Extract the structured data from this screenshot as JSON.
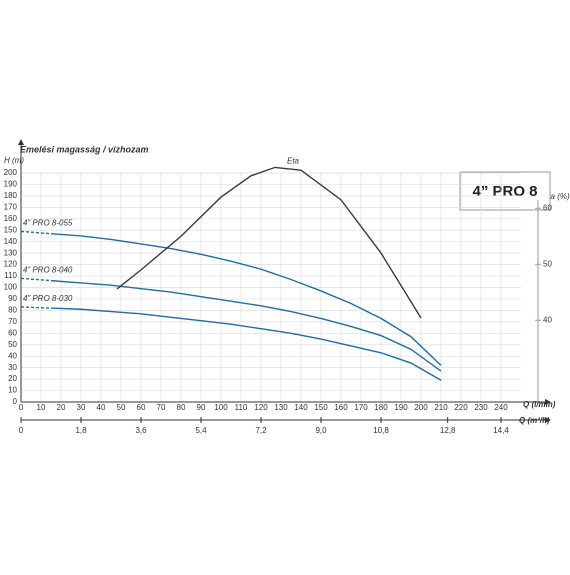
{
  "chart_data": {
    "type": "line",
    "title": "4” PRO 8",
    "subtitle": "Emelési magasság / vízhozam",
    "y_label": "H (m)",
    "y2_label": "Eta (%)",
    "x_label": "Q (l/min)",
    "x2_label": "Q (m³/h)",
    "x": [
      0,
      15,
      30,
      45,
      60,
      75,
      90,
      105,
      120,
      135,
      150,
      165,
      180,
      195,
      210
    ],
    "series": [
      {
        "name": "4” PRO 8-055",
        "color": "#1f6e9c",
        "values": [
          149,
          147,
          145,
          142,
          138,
          134,
          129,
          123,
          116,
          107,
          97,
          86,
          73,
          57,
          32
        ]
      },
      {
        "name": "4” PRO 8-040",
        "color": "#1f6e9c",
        "values": [
          108,
          106,
          104,
          102,
          99,
          96,
          92,
          88,
          84,
          79,
          73,
          66,
          58,
          46,
          27
        ]
      },
      {
        "name": "4” PRO 8-030",
        "color": "#1f6e9c",
        "values": [
          83,
          82,
          81,
          79,
          77,
          74,
          71,
          68,
          64,
          60,
          55,
          49,
          43,
          34,
          19
        ]
      },
      {
        "name": "Eta",
        "color": "#3a3a3a",
        "axis": "y2",
        "x": [
          48,
          60,
          80,
          100,
          115,
          127,
          140,
          160,
          180,
          200
        ],
        "values": [
          45.6,
          49,
          55,
          62,
          65.8,
          67.3,
          66.8,
          61.5,
          52,
          40.4
        ]
      }
    ],
    "xlim": [
      0,
      250
    ],
    "xticks": [
      0,
      10,
      20,
      30,
      40,
      50,
      60,
      70,
      80,
      90,
      100,
      110,
      120,
      130,
      140,
      150,
      160,
      170,
      180,
      190,
      200,
      210,
      220,
      230,
      240
    ],
    "x2lim": [
      0,
      15
    ],
    "x2ticks": [
      0,
      {
        "value": 1.8,
        "label": "1,8"
      },
      {
        "value": 3.6,
        "label": "3,6"
      },
      {
        "value": 5.4,
        "label": "5,4"
      },
      {
        "value": 7.2,
        "label": "7,2"
      },
      {
        "value": 9,
        "label": "9,0"
      },
      {
        "value": 10.8,
        "label": "10,8"
      },
      {
        "value": 12.8,
        "label": "12,8"
      },
      {
        "value": 14.4,
        "label": "14,4"
      }
    ],
    "ylim": [
      0,
      200
    ],
    "yticks": [
      0,
      10,
      20,
      30,
      40,
      50,
      60,
      70,
      80,
      90,
      100,
      110,
      120,
      130,
      140,
      150,
      160,
      170,
      180,
      190,
      200
    ],
    "y2lim": [
      25.4,
      66.3
    ],
    "y2ticks": [
      40,
      50,
      60
    ],
    "grid": true
  }
}
